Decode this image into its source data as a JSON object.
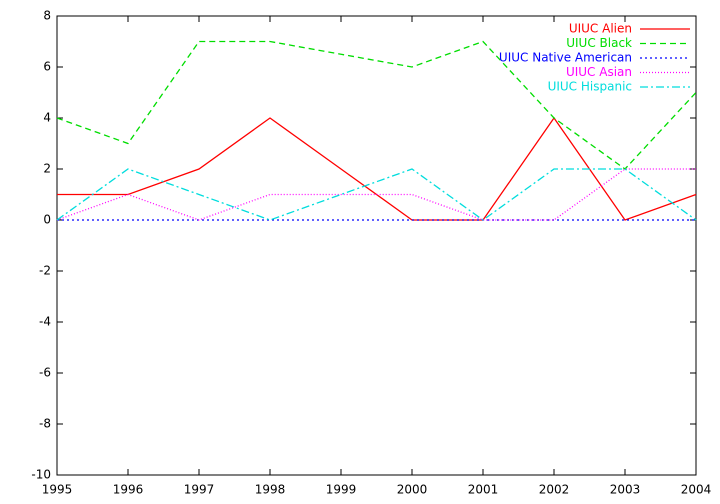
{
  "chart_data": {
    "type": "line",
    "x": [
      1995,
      1996,
      1997,
      1998,
      1999,
      2000,
      2001,
      2002,
      2003,
      2004
    ],
    "series": [
      {
        "name": "UIUC Alien",
        "color": "#ff0000",
        "values": [
          1,
          1,
          2,
          4,
          2,
          0,
          0,
          4,
          0,
          1
        ]
      },
      {
        "name": "UIUC Black",
        "color": "#00dd00",
        "values": [
          4,
          3,
          7,
          7,
          6.5,
          6,
          7,
          4,
          2,
          5
        ]
      },
      {
        "name": "UIUC Native American",
        "color": "#0000ff",
        "values": [
          0,
          0,
          0,
          0,
          0,
          0,
          0,
          0,
          0,
          0
        ]
      },
      {
        "name": "UIUC Asian",
        "color": "#ff00ff",
        "values": [
          0,
          1,
          0,
          1,
          1,
          1,
          0,
          0,
          2,
          2
        ]
      },
      {
        "name": "UIUC Hispanic",
        "color": "#00dddd",
        "values": [
          0,
          2,
          1,
          0,
          1,
          2,
          0,
          2,
          2,
          0
        ]
      }
    ],
    "xlim": [
      1995,
      2004
    ],
    "xticks": [
      1995,
      1996,
      1997,
      1998,
      1999,
      2000,
      2001,
      2002,
      2003,
      2004
    ],
    "ylim": [
      -10,
      8
    ],
    "yticks": [
      -10,
      -8,
      -6,
      -4,
      -2,
      0,
      2,
      4,
      6,
      8
    ],
    "grid": false,
    "legend": "top-right"
  }
}
